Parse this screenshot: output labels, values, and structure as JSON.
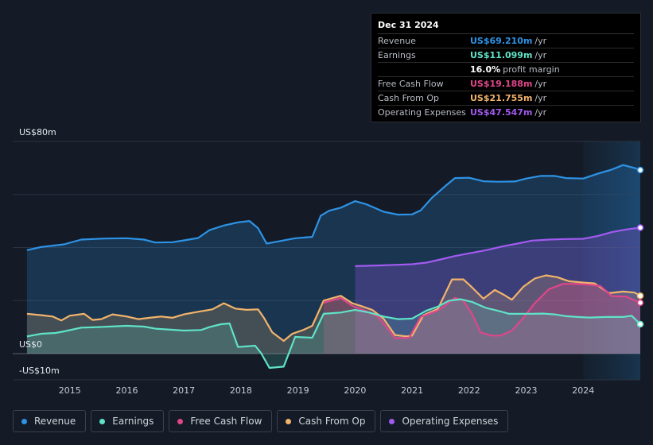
{
  "tooltip": {
    "date": "Dec 31 2024",
    "rows": [
      {
        "label": "Revenue",
        "value": "US$69.210m",
        "unit": "/yr",
        "color": "#2e93e6"
      },
      {
        "label": "Earnings",
        "value": "US$11.099m",
        "unit": "/yr",
        "color": "#5fe3c8"
      },
      {
        "label": "",
        "value": "16.0%",
        "unit": "profit margin",
        "color": "#ffffff"
      },
      {
        "label": "Free Cash Flow",
        "value": "US$19.188m",
        "unit": "/yr",
        "color": "#e0468a"
      },
      {
        "label": "Cash From Op",
        "value": "US$21.755m",
        "unit": "/yr",
        "color": "#f2b46b"
      },
      {
        "label": "Operating Expenses",
        "value": "US$47.547m",
        "unit": "/yr",
        "color": "#a25af0"
      }
    ]
  },
  "legend": [
    {
      "label": "Revenue",
      "color": "#2e93e6"
    },
    {
      "label": "Earnings",
      "color": "#5fe3c8"
    },
    {
      "label": "Free Cash Flow",
      "color": "#e0468a"
    },
    {
      "label": "Cash From Op",
      "color": "#f2b46b"
    },
    {
      "label": "Operating Expenses",
      "color": "#a25af0"
    }
  ],
  "chart_data": {
    "type": "area",
    "ylim": [
      -10,
      80
    ],
    "y_labels": [
      {
        "value": 80,
        "text": "US$80m"
      },
      {
        "value": 0,
        "text": "US$0"
      },
      {
        "value": -10,
        "text": "-US$10m"
      }
    ],
    "x_ticks": [
      "2015",
      "2016",
      "2017",
      "2018",
      "2019",
      "2020",
      "2021",
      "2022",
      "2023",
      "2024"
    ],
    "xlim": [
      2014.0,
      2025.0
    ],
    "highlight_from": 2024.0,
    "series": [
      {
        "name": "Revenue",
        "color": "#2e93e6",
        "points": [
          [
            2014.25,
            39
          ],
          [
            2014.5,
            40.2
          ],
          [
            2014.9,
            41.2
          ],
          [
            2015.2,
            43
          ],
          [
            2015.6,
            43.4
          ],
          [
            2016.0,
            43.5
          ],
          [
            2016.3,
            43
          ],
          [
            2016.5,
            41.9
          ],
          [
            2016.8,
            42
          ],
          [
            2017.0,
            42.7
          ],
          [
            2017.25,
            43.6
          ],
          [
            2017.45,
            46.6
          ],
          [
            2017.7,
            48.3
          ],
          [
            2017.95,
            49.5
          ],
          [
            2018.15,
            50
          ],
          [
            2018.3,
            47.3
          ],
          [
            2018.45,
            41.5
          ],
          [
            2018.7,
            42.5
          ],
          [
            2018.95,
            43.5
          ],
          [
            2019.25,
            44
          ],
          [
            2019.4,
            52
          ],
          [
            2019.55,
            53.9
          ],
          [
            2019.75,
            55
          ],
          [
            2020.0,
            57.5
          ],
          [
            2020.2,
            56.3
          ],
          [
            2020.5,
            53.5
          ],
          [
            2020.75,
            52.4
          ],
          [
            2021.0,
            52.5
          ],
          [
            2021.15,
            54
          ],
          [
            2021.35,
            58.8
          ],
          [
            2021.6,
            63.5
          ],
          [
            2021.75,
            66.2
          ],
          [
            2022.0,
            66.3
          ],
          [
            2022.25,
            65
          ],
          [
            2022.5,
            64.8
          ],
          [
            2022.8,
            64.9
          ],
          [
            2023.0,
            66
          ],
          [
            2023.25,
            67
          ],
          [
            2023.5,
            67
          ],
          [
            2023.7,
            66.2
          ],
          [
            2024.0,
            66
          ],
          [
            2024.25,
            67.8
          ],
          [
            2024.5,
            69.4
          ],
          [
            2024.7,
            71.1
          ],
          [
            2024.9,
            70
          ],
          [
            2025.0,
            69.2
          ]
        ]
      },
      {
        "name": "Operating Expenses",
        "color": "#a25af0",
        "points": [
          [
            2020.0,
            33
          ],
          [
            2020.5,
            33.3
          ],
          [
            2020.75,
            33.5
          ],
          [
            2021.0,
            33.7
          ],
          [
            2021.25,
            34.3
          ],
          [
            2021.5,
            35.5
          ],
          [
            2021.75,
            36.8
          ],
          [
            2022.0,
            37.8
          ],
          [
            2022.3,
            39
          ],
          [
            2022.6,
            40.5
          ],
          [
            2022.85,
            41.5
          ],
          [
            2023.1,
            42.6
          ],
          [
            2023.4,
            43
          ],
          [
            2023.7,
            43.2
          ],
          [
            2024.0,
            43.3
          ],
          [
            2024.25,
            44.3
          ],
          [
            2024.5,
            45.8
          ],
          [
            2024.75,
            46.8
          ],
          [
            2025.0,
            47.5
          ]
        ]
      },
      {
        "name": "Cash From Op",
        "color": "#f2b46b",
        "points": [
          [
            2014.25,
            15
          ],
          [
            2014.5,
            14.5
          ],
          [
            2014.7,
            14
          ],
          [
            2014.85,
            12.5
          ],
          [
            2015.0,
            14.3
          ],
          [
            2015.25,
            15
          ],
          [
            2015.4,
            12.7
          ],
          [
            2015.55,
            13
          ],
          [
            2015.75,
            14.8
          ],
          [
            2016.0,
            14
          ],
          [
            2016.2,
            13
          ],
          [
            2016.4,
            13.5
          ],
          [
            2016.6,
            14
          ],
          [
            2016.8,
            13.5
          ],
          [
            2017.0,
            14.8
          ],
          [
            2017.25,
            15.8
          ],
          [
            2017.5,
            16.7
          ],
          [
            2017.7,
            19
          ],
          [
            2017.9,
            17
          ],
          [
            2018.1,
            16.5
          ],
          [
            2018.3,
            16.7
          ],
          [
            2018.4,
            13.6
          ],
          [
            2018.55,
            8
          ],
          [
            2018.75,
            4.8
          ],
          [
            2018.9,
            7.5
          ],
          [
            2019.1,
            9
          ],
          [
            2019.25,
            10.5
          ],
          [
            2019.45,
            20
          ],
          [
            2019.75,
            21.8
          ],
          [
            2019.95,
            19
          ],
          [
            2020.1,
            18
          ],
          [
            2020.3,
            16.5
          ],
          [
            2020.5,
            13.2
          ],
          [
            2020.7,
            7
          ],
          [
            2020.9,
            6.5
          ],
          [
            2021.0,
            6.8
          ],
          [
            2021.2,
            14.5
          ],
          [
            2021.45,
            16.8
          ],
          [
            2021.7,
            28
          ],
          [
            2021.9,
            28
          ],
          [
            2022.05,
            25
          ],
          [
            2022.25,
            20.7
          ],
          [
            2022.45,
            24
          ],
          [
            2022.6,
            22.3
          ],
          [
            2022.75,
            20.3
          ],
          [
            2022.95,
            25.2
          ],
          [
            2023.15,
            28.3
          ],
          [
            2023.35,
            29.5
          ],
          [
            2023.55,
            28.8
          ],
          [
            2023.75,
            27.3
          ],
          [
            2024.0,
            26.8
          ],
          [
            2024.2,
            26.5
          ],
          [
            2024.45,
            22.8
          ],
          [
            2024.7,
            23.4
          ],
          [
            2024.9,
            23
          ],
          [
            2025.0,
            21.8
          ]
        ]
      },
      {
        "name": "Free Cash Flow",
        "color": "#e0468a",
        "points": [
          [
            2019.45,
            19.2
          ],
          [
            2019.75,
            21
          ],
          [
            2019.95,
            18
          ],
          [
            2020.2,
            16
          ],
          [
            2020.4,
            14
          ],
          [
            2020.55,
            10
          ],
          [
            2020.7,
            5.8
          ],
          [
            2020.95,
            6
          ],
          [
            2021.15,
            13.8
          ],
          [
            2021.45,
            16.2
          ],
          [
            2021.6,
            18.5
          ],
          [
            2021.75,
            21
          ],
          [
            2021.9,
            20
          ],
          [
            2022.05,
            15
          ],
          [
            2022.2,
            8
          ],
          [
            2022.4,
            6.8
          ],
          [
            2022.55,
            6.8
          ],
          [
            2022.75,
            8.7
          ],
          [
            2022.95,
            13.5
          ],
          [
            2023.15,
            19
          ],
          [
            2023.4,
            24.3
          ],
          [
            2023.65,
            26.3
          ],
          [
            2023.85,
            26.3
          ],
          [
            2024.05,
            26.1
          ],
          [
            2024.3,
            25.5
          ],
          [
            2024.5,
            21.7
          ],
          [
            2024.75,
            21.5
          ],
          [
            2025.0,
            19.2
          ]
        ]
      },
      {
        "name": "Earnings",
        "color": "#5fe3c8",
        "points": [
          [
            2014.25,
            6.5
          ],
          [
            2014.5,
            7.5
          ],
          [
            2014.75,
            7.8
          ],
          [
            2014.9,
            8.4
          ],
          [
            2015.2,
            9.8
          ],
          [
            2015.5,
            10
          ],
          [
            2015.8,
            10.3
          ],
          [
            2016.0,
            10.5
          ],
          [
            2016.3,
            10.2
          ],
          [
            2016.5,
            9.4
          ],
          [
            2016.8,
            9
          ],
          [
            2017.0,
            8.7
          ],
          [
            2017.3,
            8.9
          ],
          [
            2017.45,
            10
          ],
          [
            2017.65,
            11.1
          ],
          [
            2017.8,
            11.4
          ],
          [
            2017.95,
            2.5
          ],
          [
            2018.25,
            3
          ],
          [
            2018.35,
            0.3
          ],
          [
            2018.5,
            -5.4
          ],
          [
            2018.75,
            -4.9
          ],
          [
            2018.95,
            6.3
          ],
          [
            2019.25,
            6
          ],
          [
            2019.45,
            15
          ],
          [
            2019.75,
            15.5
          ],
          [
            2020.0,
            16.5
          ],
          [
            2020.25,
            15.5
          ],
          [
            2020.5,
            14
          ],
          [
            2020.75,
            13
          ],
          [
            2021.0,
            13.2
          ],
          [
            2021.25,
            16.2
          ],
          [
            2021.45,
            17.7
          ],
          [
            2021.65,
            20
          ],
          [
            2021.85,
            20.5
          ],
          [
            2022.05,
            19.5
          ],
          [
            2022.3,
            17.2
          ],
          [
            2022.5,
            16.2
          ],
          [
            2022.7,
            15
          ],
          [
            2022.9,
            15
          ],
          [
            2023.1,
            15
          ],
          [
            2023.3,
            15.1
          ],
          [
            2023.5,
            14.8
          ],
          [
            2023.7,
            14.1
          ],
          [
            2023.9,
            13.8
          ],
          [
            2024.1,
            13.6
          ],
          [
            2024.4,
            13.8
          ],
          [
            2024.7,
            13.8
          ],
          [
            2024.85,
            14.3
          ],
          [
            2025.0,
            11.1
          ]
        ]
      }
    ]
  }
}
